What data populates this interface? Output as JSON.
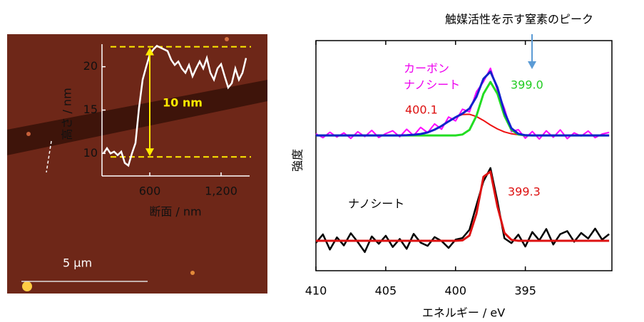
{
  "chart_data": [
    {
      "type": "line",
      "xlabel": "断面 / nm",
      "ylabel": "高さ / nm",
      "x": [
        210,
        240,
        270,
        300,
        330,
        360,
        390,
        420,
        450,
        480,
        510,
        540,
        570,
        600,
        630,
        660,
        690,
        720,
        750,
        780,
        810,
        840,
        870,
        900,
        930,
        960,
        990,
        1020,
        1050,
        1080,
        1110,
        1140,
        1170,
        1200,
        1230,
        1260,
        1290,
        1320,
        1350,
        1380,
        1410
      ],
      "values": [
        10.0,
        10.6,
        10.0,
        10.2,
        9.8,
        10.2,
        8.9,
        8.6,
        10.0,
        11.2,
        15.3,
        18.5,
        20.0,
        21.4,
        22.0,
        22.4,
        22.2,
        22.0,
        21.8,
        20.8,
        20.2,
        20.6,
        19.8,
        19.3,
        20.2,
        18.9,
        19.8,
        20.6,
        19.8,
        21.0,
        19.3,
        18.5,
        19.8,
        20.3,
        18.9,
        17.6,
        18.1,
        19.8,
        18.5,
        19.3,
        21.0
      ],
      "color": "#ffffff",
      "xlim": [
        198,
        1440
      ],
      "ylim": [
        7.4,
        22.6
      ],
      "xticks": [
        600,
        {
          "value": 1200,
          "label": "1,200"
        }
      ],
      "yticks": [
        10,
        15,
        20
      ],
      "reference_lines": [
        9.6,
        22.3
      ],
      "reference_color": "#ffea00",
      "annotation": "10 nm",
      "scale_bar": "5 μm"
    },
    {
      "type": "line",
      "xlabel": "エネルギー / eV",
      "ylabel": "強度",
      "title": "触媒活性を示す窒素のピーク",
      "x": [
        410,
        409.5,
        409,
        408.5,
        408,
        407.5,
        407,
        406.5,
        406,
        405.5,
        405,
        404.5,
        404,
        403.5,
        403,
        402.5,
        402,
        401.5,
        401,
        400.5,
        400,
        399.5,
        399,
        398.5,
        398,
        397.5,
        397,
        396.5,
        396,
        395.5,
        395,
        394.5,
        394,
        393.5,
        393,
        392.5,
        392,
        391.5,
        391,
        390.5,
        390,
        389.5,
        389
      ],
      "xlim": [
        410,
        388.8
      ],
      "ylim": [
        0,
        100
      ],
      "xticks": [
        410,
        405,
        400,
        395
      ],
      "series": [
        {
          "color": "#ff00ff",
          "width": 2,
          "values": [
            59.5,
            57.8,
            60.2,
            58.1,
            59.9,
            57.5,
            60.4,
            58.3,
            61.0,
            57.9,
            59.6,
            60.8,
            58.2,
            61.5,
            58.7,
            62.3,
            60.0,
            63.8,
            61.5,
            66.8,
            65.1,
            70.2,
            69.0,
            77.8,
            82.1,
            88.0,
            78.3,
            70.5,
            60.4,
            61.3,
            57.6,
            60.5,
            57.2,
            60.8,
            58.0,
            61.2,
            57.4,
            59.9,
            58.5,
            60.7,
            57.8,
            59.4,
            60.1
          ]
        },
        {
          "color": "#ee1111",
          "width": 2,
          "values": [
            58.8,
            58.8,
            58.8,
            58.8,
            58.8,
            58.8,
            58.8,
            58.8,
            58.8,
            58.8,
            58.8,
            58.8,
            58.8,
            58.9,
            59.1,
            59.4,
            60.1,
            61.3,
            62.9,
            64.9,
            66.7,
            67.9,
            68.0,
            67.0,
            65.3,
            63.3,
            61.6,
            60.3,
            59.5,
            59.1,
            58.9,
            58.8,
            58.8,
            58.8,
            58.8,
            58.8,
            58.8,
            58.8,
            58.8,
            58.8,
            58.8,
            58.8,
            58.8
          ]
        },
        {
          "color": "#22dd22",
          "width": 3,
          "values": [
            58.8,
            58.8,
            58.8,
            58.8,
            58.8,
            58.8,
            58.8,
            58.8,
            58.8,
            58.8,
            58.8,
            58.8,
            58.8,
            58.8,
            58.8,
            58.8,
            58.8,
            58.8,
            58.8,
            58.8,
            58.8,
            59.2,
            61.2,
            67.3,
            76.9,
            82.0,
            76.9,
            67.3,
            61.2,
            59.2,
            58.8,
            58.8,
            58.8,
            58.8,
            58.8,
            58.8,
            58.8,
            58.8,
            58.8,
            58.8,
            58.8,
            58.8,
            58.8
          ]
        },
        {
          "color": "#1122cc",
          "width": 3,
          "values": [
            58.8,
            58.8,
            58.8,
            58.8,
            58.8,
            58.8,
            58.8,
            58.8,
            58.8,
            58.8,
            58.8,
            58.8,
            58.8,
            58.9,
            59.1,
            59.4,
            60.1,
            61.3,
            62.9,
            64.9,
            66.7,
            68.3,
            70.5,
            75.6,
            83.4,
            86.5,
            79.6,
            68.9,
            61.9,
            59.5,
            58.9,
            58.8,
            58.8,
            58.8,
            58.8,
            58.8,
            58.8,
            58.8,
            58.8,
            58.8,
            58.8,
            58.8,
            58.8
          ]
        },
        {
          "color": "#000000",
          "width": 2.5,
          "values": [
            12.1,
            15.8,
            9.2,
            14.5,
            11.0,
            16.3,
            12.4,
            8.1,
            14.9,
            11.7,
            15.2,
            10.3,
            13.8,
            9.5,
            16.0,
            12.2,
            10.8,
            14.6,
            12.9,
            9.9,
            13.5,
            14.2,
            17.8,
            28.5,
            38.9,
            44.6,
            30.2,
            14.1,
            12.0,
            15.7,
            10.5,
            16.8,
            13.2,
            18.1,
            11.4,
            15.9,
            17.2,
            12.6,
            16.4,
            14.0,
            18.3,
            13.5,
            15.9
          ]
        },
        {
          "color": "#dd1111",
          "width": 3,
          "values": [
            13.0,
            13.0,
            13.0,
            13.0,
            13.0,
            13.0,
            13.0,
            13.0,
            13.0,
            13.0,
            13.0,
            13.0,
            13.0,
            13.0,
            13.0,
            13.0,
            13.0,
            13.0,
            13.0,
            13.0,
            13.0,
            13.2,
            15.3,
            24.8,
            40.8,
            43.1,
            27.9,
            16.4,
            13.4,
            13.0,
            13.0,
            13.0,
            13.0,
            13.0,
            13.0,
            13.0,
            13.0,
            13.0,
            13.0,
            13.0,
            13.0,
            13.0,
            13.0
          ]
        }
      ],
      "annotations": [
        {
          "text": "カーボン",
          "color": "#ee00ee"
        },
        {
          "text": "ナノシート",
          "color": "#ee00ee"
        },
        {
          "text": "400.1",
          "color": "#dd1111"
        },
        {
          "text": "399.0",
          "color": "#22cc22"
        },
        {
          "text": "ナノシート",
          "color": "#000000"
        },
        {
          "text": "399.3",
          "color": "#dd1111"
        }
      ]
    }
  ]
}
